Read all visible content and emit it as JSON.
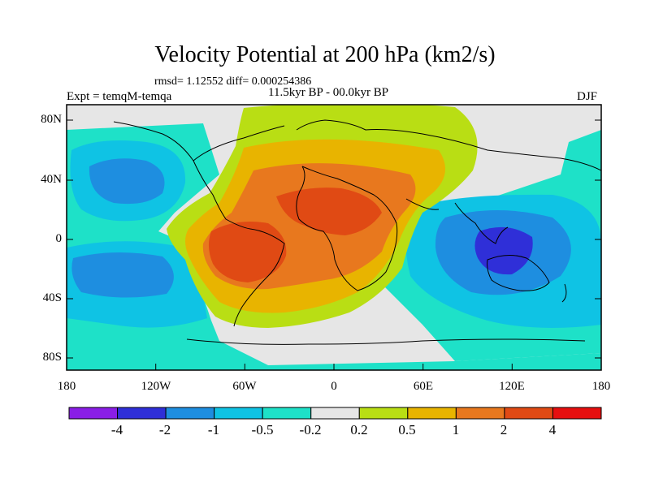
{
  "figure": {
    "title": "Velocity Potential at 200 hPa (km2/s)",
    "stats": "rmsd= 1.12552 diff= 0.000254386",
    "period": "11.5kyr BP - 00.0kyr BP",
    "experiment": "Expt = temqM-temqa",
    "season": "DJF"
  },
  "axes": {
    "y_ticks": [
      "80N",
      "40N",
      "0",
      "40S",
      "80S"
    ],
    "x_ticks": [
      "180",
      "120W",
      "60W",
      "0",
      "60E",
      "120E",
      "180"
    ]
  },
  "colorbar": {
    "labels": [
      "-4",
      "-2",
      "-1",
      "-0.5",
      "-0.2",
      "0.2",
      "0.5",
      "1",
      "2",
      "4"
    ],
    "colors": [
      "#8a1ee6",
      "#2f2fd8",
      "#1e8ee0",
      "#0fc3e4",
      "#1ee1c8",
      "#e6e6e6",
      "#b9de14",
      "#e8b400",
      "#e8781e",
      "#e04a14",
      "#e60f0f"
    ]
  },
  "palette": {
    "neutral": "#e6e6e6",
    "yellow_green": "#b9de14",
    "orange": "#e8781e",
    "red_orange": "#e04a14",
    "cyan": "#0fc3e4",
    "teal": "#1ee1c8",
    "blue": "#1e8ee0",
    "deep_blue": "#2f2fd8"
  }
}
